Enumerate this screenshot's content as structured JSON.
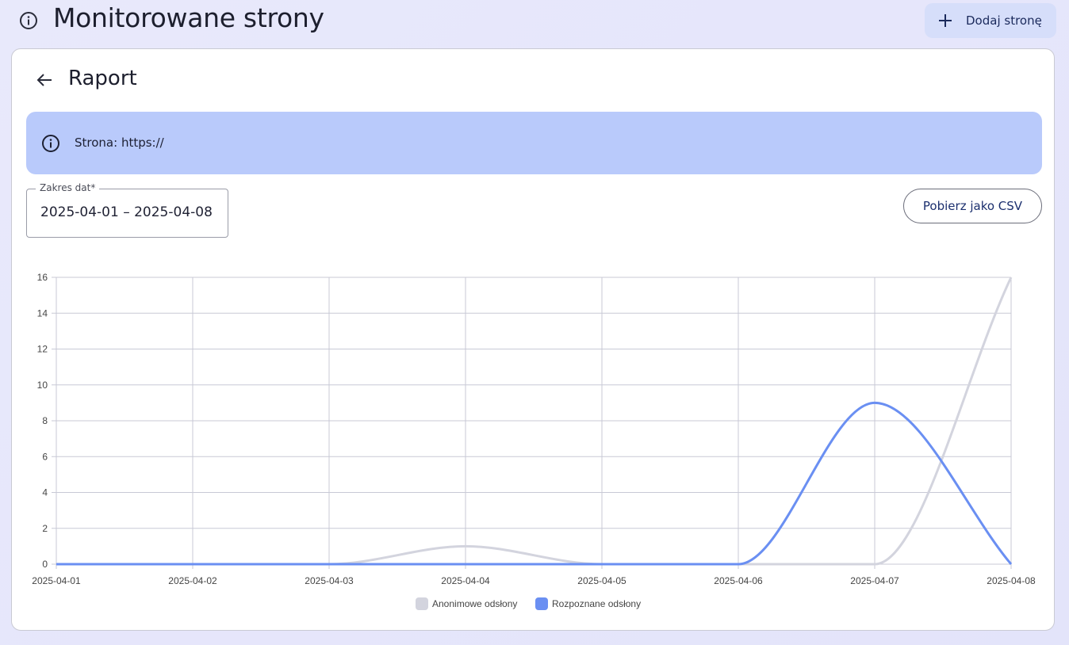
{
  "header": {
    "title": "Monitorowane strony",
    "add_button_label": "Dodaj stronę"
  },
  "report": {
    "title": "Raport",
    "banner_text": "Strona: https://",
    "date_range": {
      "label": "Zakres dat",
      "required_mark": "*",
      "value": "2025-04-01 – 2025-04-08"
    },
    "csv_button_label": "Pobierz jako CSV"
  },
  "colors": {
    "anonymous": "#d3d4de",
    "recognized": "#6a8ff2",
    "banner": "#b9cafb",
    "add_button": "#d6defa"
  },
  "chart_data": {
    "type": "line",
    "x": [
      "2025-04-01",
      "2025-04-02",
      "2025-04-03",
      "2025-04-04",
      "2025-04-05",
      "2025-04-06",
      "2025-04-07",
      "2025-04-08"
    ],
    "series": [
      {
        "name": "Anonimowe odsłony",
        "values": [
          0,
          0,
          0,
          1,
          0,
          0,
          0,
          16
        ]
      },
      {
        "name": "Rozpoznane odsłony",
        "values": [
          0,
          0,
          0,
          0,
          0,
          0,
          9,
          0
        ]
      }
    ],
    "ylim": [
      0,
      16
    ],
    "yticks": [
      0,
      2,
      4,
      6,
      8,
      10,
      12,
      14,
      16
    ],
    "grid": true,
    "legend_position": "bottom-center"
  }
}
